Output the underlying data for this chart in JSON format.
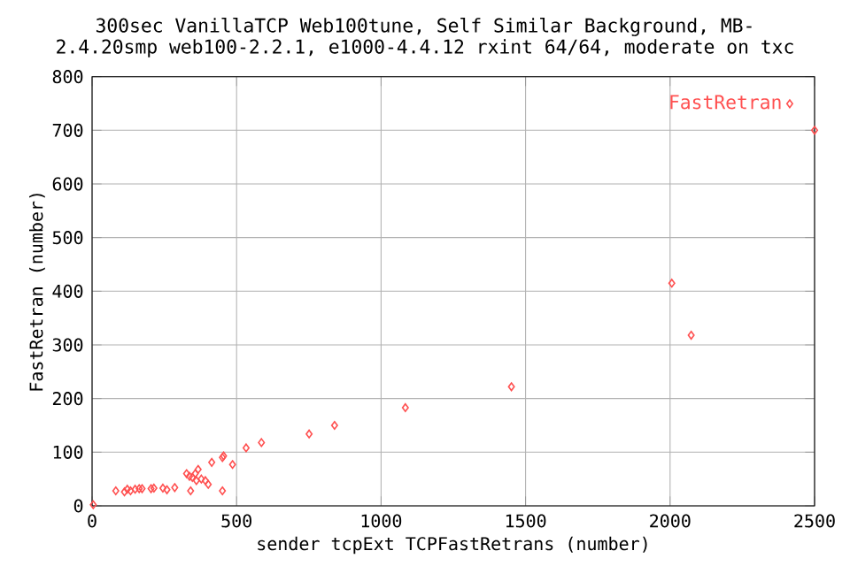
{
  "chart_data": {
    "type": "scatter",
    "title": "300sec VanillaTCP  Web100tune, Self Similar Background, MB-",
    "subtitle": "2.4.20smp web100-2.2.1, e1000-4.4.12 rxint 64/64, moderate on txc",
    "xlabel": "sender tcpExt TCPFastRetrans (number)",
    "ylabel": "FastRetran (number)",
    "series": [
      {
        "name": "FastRetran",
        "color": "#ff5050",
        "x": [
          4,
          82,
          112,
          122,
          133,
          149,
          163,
          173,
          204,
          214,
          245,
          259,
          286,
          327,
          337,
          347,
          357,
          367,
          361,
          378,
          392,
          402,
          341,
          414,
          451,
          455,
          486,
          451,
          533,
          586,
          751,
          839,
          1084,
          1451,
          2006,
          2073,
          2500
        ],
        "values": [
          2,
          28,
          26,
          31,
          28,
          31,
          32,
          32,
          32,
          33,
          33,
          30,
          34,
          60,
          55,
          53,
          60,
          68,
          47,
          50,
          47,
          40,
          28,
          81,
          90,
          93,
          77,
          28,
          108,
          118,
          134,
          150,
          183,
          222,
          415,
          318,
          700
        ]
      }
    ],
    "xlim": [
      0,
      2500
    ],
    "ylim": [
      0,
      800
    ],
    "xticks": [
      0,
      500,
      1000,
      1500,
      2000,
      2500
    ],
    "yticks": [
      0,
      100,
      200,
      300,
      400,
      500,
      600,
      700,
      800
    ],
    "grid": true,
    "legend": "top right",
    "marker": "diamond"
  }
}
